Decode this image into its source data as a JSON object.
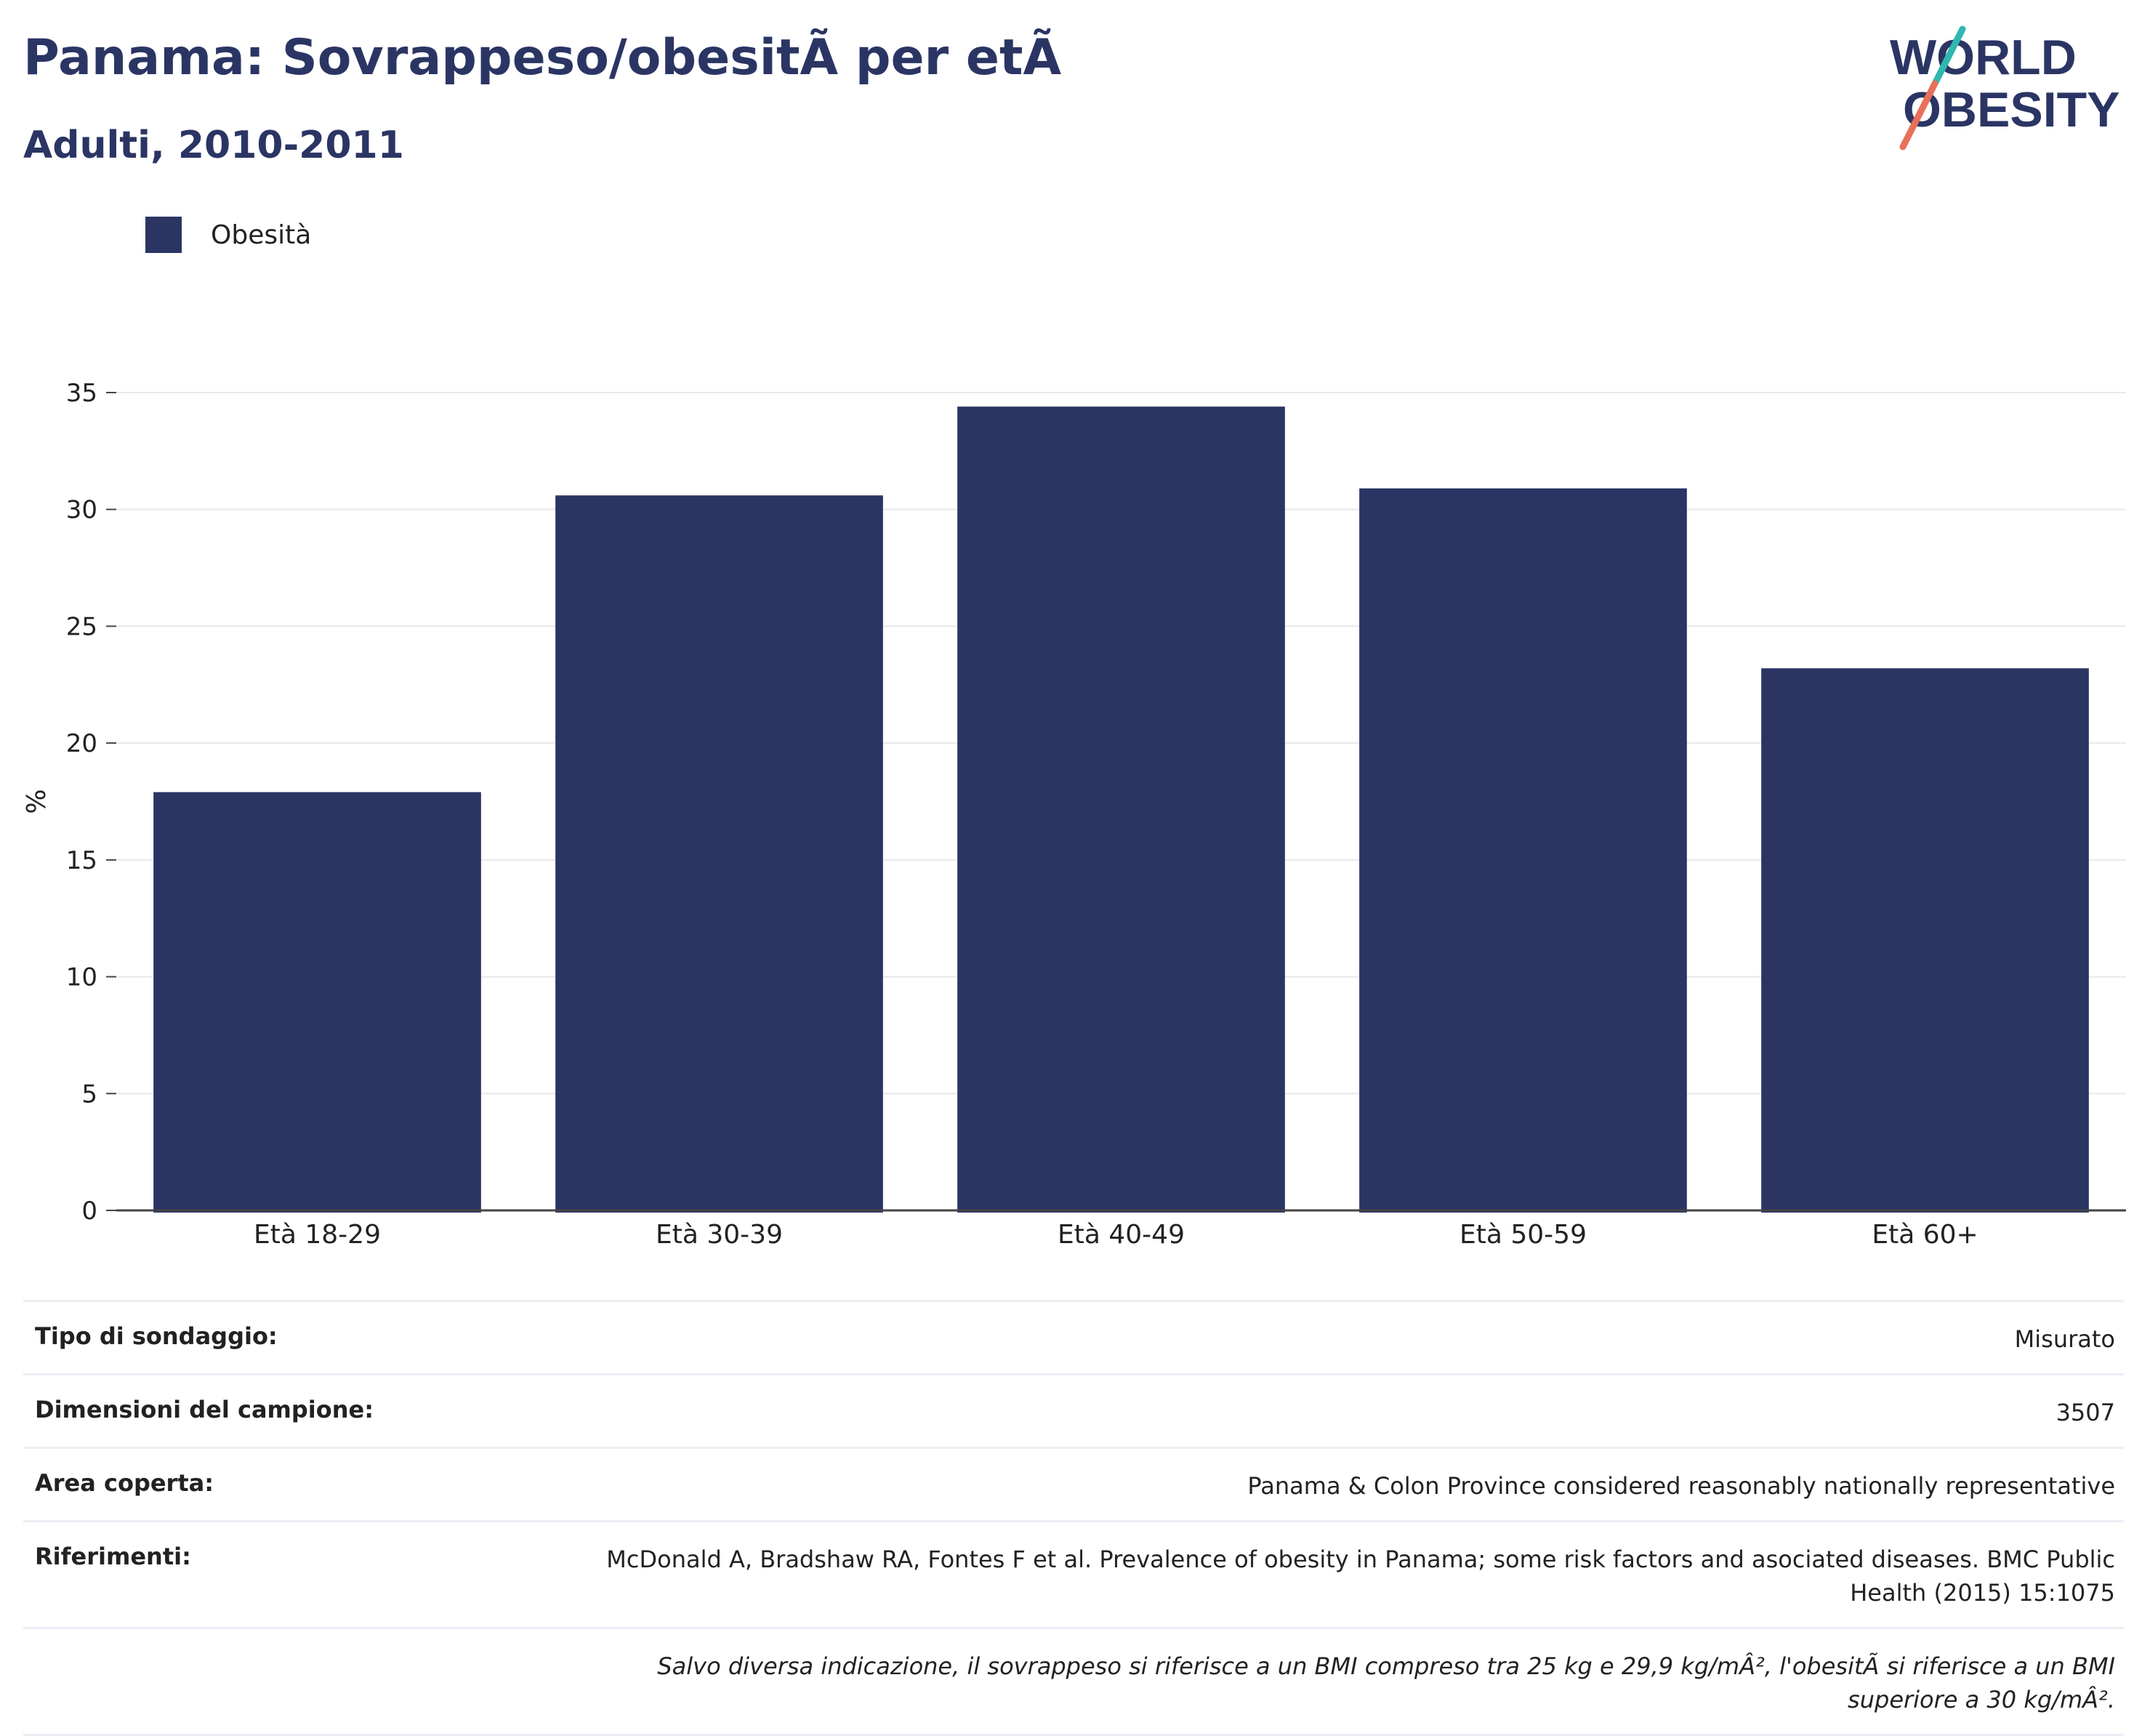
{
  "header": {
    "title": "Panama: Sovrappeso/obesitÃ  per etÃ",
    "subtitle": "Adulti, 2010-2011",
    "logo_line1": "WORLD",
    "logo_line2": "OBESITY"
  },
  "legend": {
    "label": "Obesità",
    "color": "#2b3564"
  },
  "chart_data": {
    "type": "bar",
    "categories": [
      "Età 18-29",
      "Età 30-39",
      "Età 40-49",
      "Età 50-59",
      "Età 60+"
    ],
    "series": [
      {
        "name": "Obesità",
        "values": [
          17.9,
          30.6,
          34.4,
          30.9,
          23.2
        ],
        "color": "#2b3564"
      }
    ],
    "ylabel": "%",
    "ylim": [
      0,
      35
    ],
    "yticks": [
      0,
      5,
      10,
      15,
      20,
      25,
      30,
      35
    ],
    "grid": true
  },
  "info": {
    "rows": [
      {
        "key": "Tipo di sondaggio:",
        "value": "Misurato"
      },
      {
        "key": "Dimensioni del campione:",
        "value": "3507"
      },
      {
        "key": "Area coperta:",
        "value": "Panama & Colon Province considered reasonably nationally representative"
      },
      {
        "key": "Riferimenti:",
        "value": "McDonald A, Bradshaw RA, Fontes F et al. Prevalence of obesity in Panama; some risk factors and asociated diseases. BMC Public Health (2015) 15:1075"
      }
    ],
    "note": "Salvo diversa indicazione, il sovrappeso si riferisce a un BMI compreso tra 25 kg e 29,9 kg/mÂ², l'obesitÃ  si riferisce a un BMI superiore a 30 kg/mÂ²."
  }
}
